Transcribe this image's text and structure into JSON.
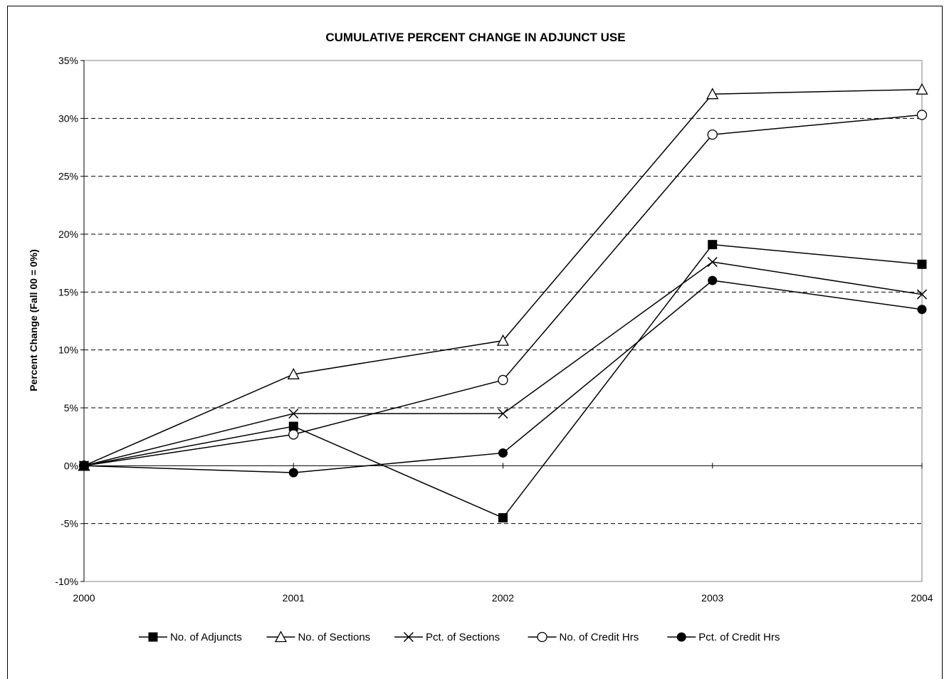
{
  "chart_data": {
    "type": "line",
    "title": "CUMULATIVE PERCENT CHANGE IN ADJUNCT USE",
    "xlabel": "",
    "ylabel": "Percent Change (Fall 00 = 0%)",
    "x": [
      "2000",
      "2001",
      "2002",
      "2003",
      "2004"
    ],
    "ylim": [
      -10,
      35
    ],
    "yticks": [
      -10,
      -5,
      0,
      5,
      10,
      15,
      20,
      25,
      30,
      35
    ],
    "ytick_labels": [
      "-10%",
      "-5%",
      "0%",
      "5%",
      "10%",
      "15%",
      "20%",
      "25%",
      "30%",
      "35%"
    ],
    "grid": "horizontal dashed",
    "legend_position": "bottom",
    "series": [
      {
        "name": "No. of Adjuncts",
        "marker": "filled-square",
        "values": [
          0,
          3.4,
          -4.5,
          19.1,
          17.4
        ]
      },
      {
        "name": "No. of Sections",
        "marker": "open-triangle",
        "values": [
          0,
          7.9,
          10.8,
          32.1,
          32.5
        ]
      },
      {
        "name": "Pct. of Sections",
        "marker": "x",
        "values": [
          0,
          4.5,
          4.5,
          17.6,
          14.8
        ]
      },
      {
        "name": "No. of Credit Hrs",
        "marker": "open-circle",
        "values": [
          0,
          2.7,
          7.4,
          28.6,
          30.3
        ]
      },
      {
        "name": "Pct. of Credit Hrs",
        "marker": "filled-circle",
        "values": [
          0,
          -0.6,
          1.1,
          16.0,
          13.5
        ]
      }
    ]
  }
}
